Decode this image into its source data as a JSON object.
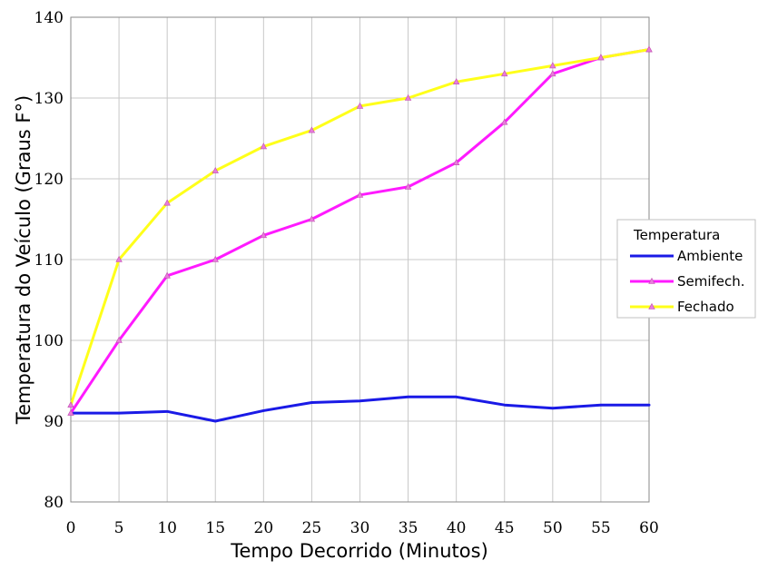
{
  "chart_data": {
    "type": "line",
    "title": "",
    "xlabel": "Tempo Decorrido (Minutos)",
    "ylabel": "Temperatura do Veículo (Graus F°)",
    "x": [
      0,
      5,
      10,
      15,
      20,
      25,
      30,
      35,
      40,
      45,
      50,
      55,
      60
    ],
    "xticks": [
      "0",
      "5",
      "10",
      "15",
      "20",
      "25",
      "30",
      "35",
      "40",
      "45",
      "50",
      "55",
      "60"
    ],
    "yticks": [
      "80",
      "90",
      "100",
      "110",
      "120",
      "130",
      "140"
    ],
    "xlim": [
      0,
      60
    ],
    "ylim": [
      80,
      140
    ],
    "grid": true,
    "legend_position": "right",
    "legend_title": "Temperatura",
    "series": [
      {
        "name": "Ambiente",
        "color": "#1a1ae6",
        "marker": "none",
        "values": [
          91,
          91,
          91.2,
          90,
          91.3,
          92.3,
          92.5,
          93,
          93,
          92,
          91.6,
          92,
          92
        ]
      },
      {
        "name": "Semifech.",
        "color": "#ff1aff",
        "marker": "triangle",
        "values": [
          91,
          100,
          108,
          110,
          113,
          115,
          118,
          119,
          122,
          127,
          133,
          135,
          136
        ]
      },
      {
        "name": "Fechado",
        "color": "#ffff1a",
        "marker": "triangle",
        "values": [
          92,
          110,
          117,
          121,
          124,
          126,
          129,
          130,
          132,
          133,
          134,
          135,
          136
        ]
      }
    ]
  }
}
